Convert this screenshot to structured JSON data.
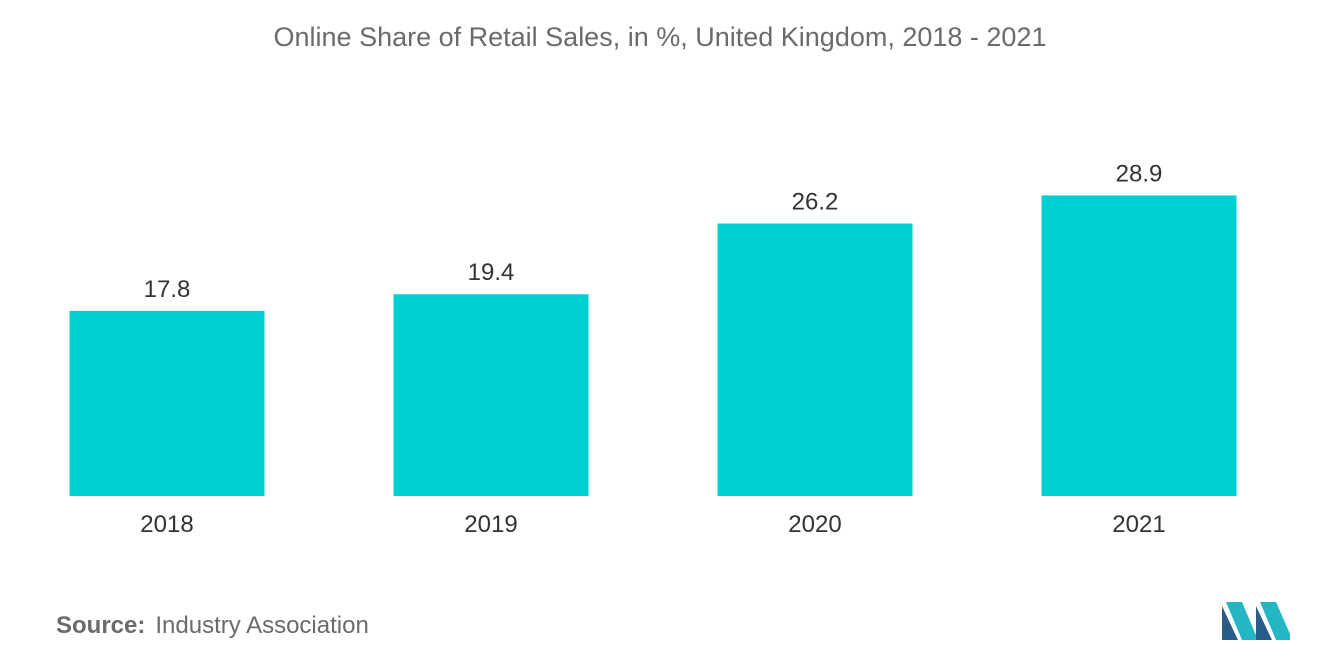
{
  "chart_data": {
    "type": "bar",
    "title": "Online Share of Retail Sales, in %,  United Kingdom, 2018 - 2021",
    "categories": [
      "2018",
      "2019",
      "2020",
      "2021"
    ],
    "values": [
      17.8,
      19.4,
      26.2,
      28.9
    ],
    "value_labels": [
      "17.8",
      "19.4",
      "26.2",
      "28.9"
    ],
    "xlabel": "",
    "ylabel": "",
    "ylim": [
      0,
      30
    ],
    "grid": false,
    "bar_color": "#00cfd4"
  },
  "footer": {
    "source_label": "Source:",
    "source_text": "Industry Association"
  },
  "colors": {
    "text": "#6b6b6b",
    "label_text": "#333333",
    "logo_dark": "#2a5c8a",
    "logo_light": "#23b7c3"
  }
}
